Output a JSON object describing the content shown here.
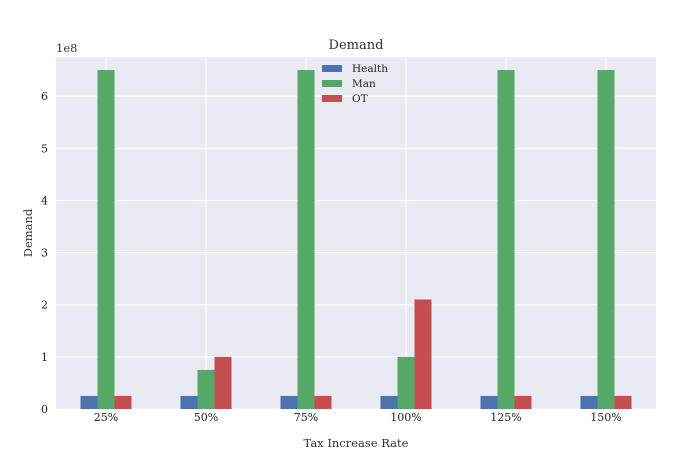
{
  "chart_data": {
    "type": "bar",
    "title": "Demand",
    "xlabel": "Tax Increase Rate",
    "ylabel": "Demand",
    "y_offset_label": "1e8",
    "y_scale": 100000000,
    "categories": [
      "25%",
      "50%",
      "75%",
      "100%",
      "125%",
      "150%"
    ],
    "series": [
      {
        "name": "Health",
        "color": "#4c72b0",
        "values": [
          25000000,
          25000000,
          25000000,
          25000000,
          25000000,
          25000000
        ]
      },
      {
        "name": "Man",
        "color": "#55a868",
        "values": [
          650000000,
          75000000,
          650000000,
          100000000,
          650000000,
          650000000
        ]
      },
      {
        "name": "OT",
        "color": "#c44e52",
        "values": [
          25000000,
          100000000,
          25000000,
          210000000,
          25000000,
          25000000
        ]
      }
    ],
    "ylim": [
      0,
      675000000
    ],
    "yticks": [
      0,
      1,
      2,
      3,
      4,
      5,
      6
    ],
    "grid": true,
    "legend_position": "top-center",
    "background": "#eaeaf2"
  }
}
